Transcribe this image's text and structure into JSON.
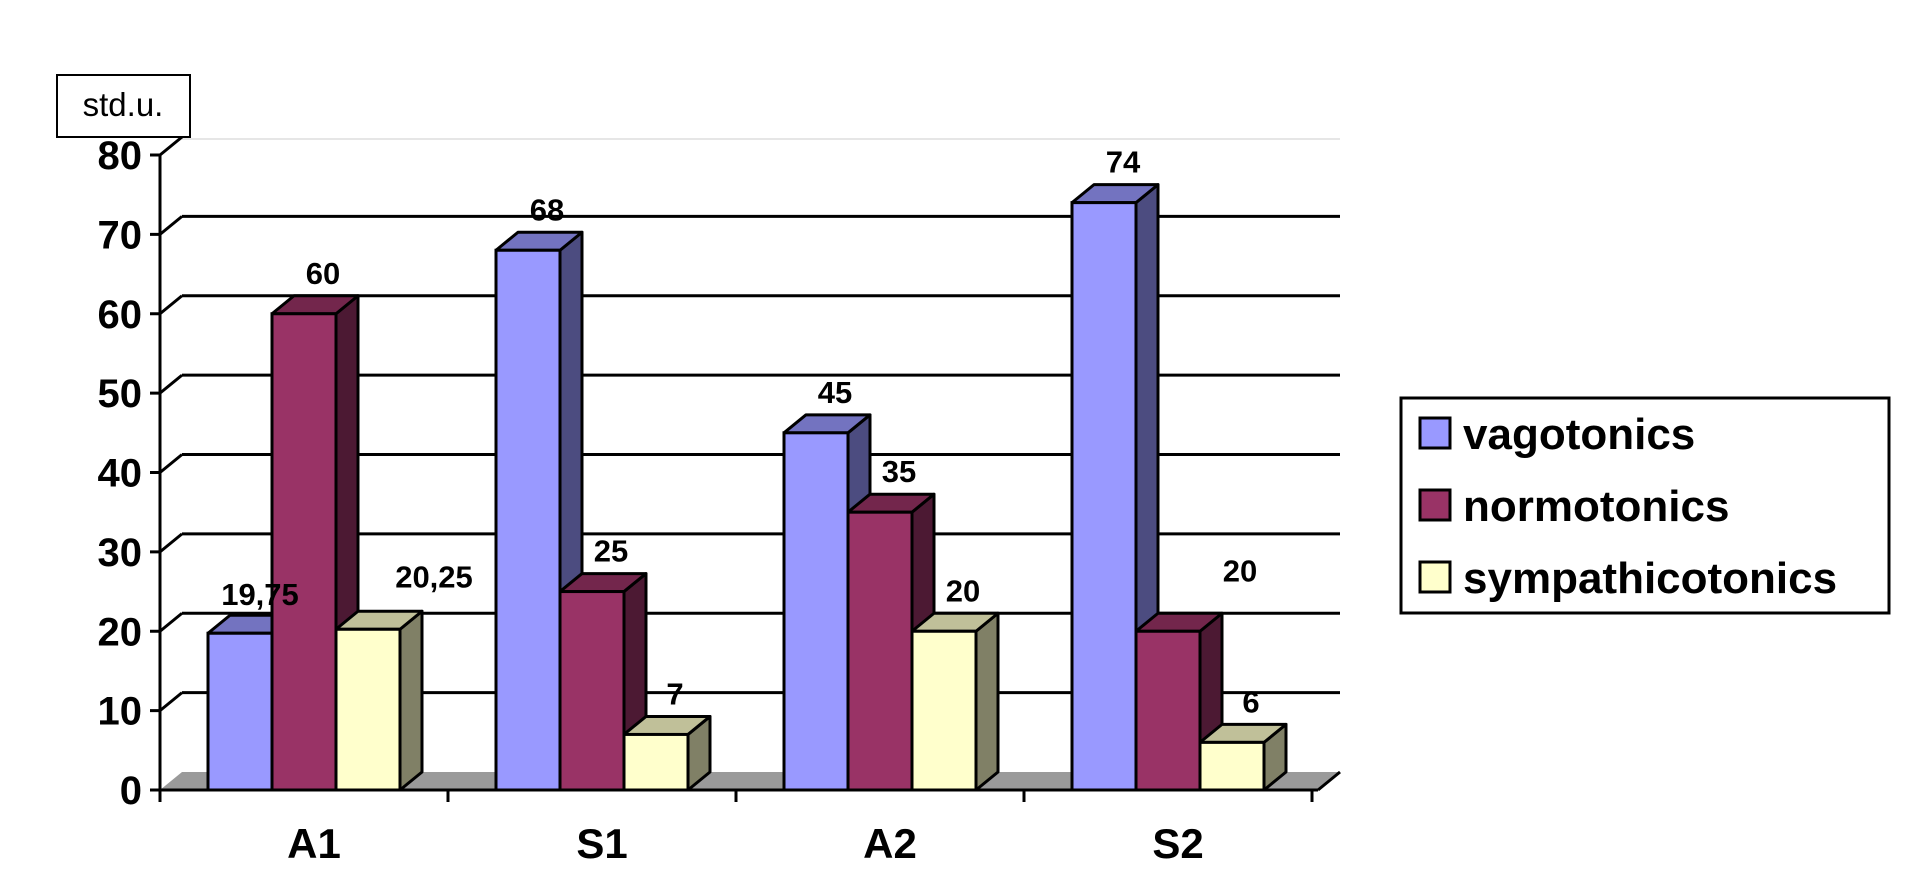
{
  "chart_data": {
    "type": "bar",
    "unit_label": "std.u.",
    "categories": [
      "A1",
      "S1",
      "A2",
      "S2"
    ],
    "series": [
      {
        "name": "vagotonics",
        "values": [
          19.75,
          68,
          45,
          74
        ],
        "labels": [
          "19,75",
          "68",
          "45",
          "74"
        ],
        "color": "#9999ff",
        "side_color": "#4c4c80",
        "top_color": "#7373c0"
      },
      {
        "name": "normotonics",
        "values": [
          60,
          25,
          35,
          20
        ],
        "labels": [
          "60",
          "25",
          "35",
          "20"
        ],
        "color": "#993366",
        "side_color": "#4c1933",
        "top_color": "#73264c"
      },
      {
        "name": "sympathicotonics",
        "values": [
          20.25,
          7,
          20,
          6
        ],
        "labels": [
          "20,25",
          "7",
          "20",
          "6"
        ],
        "color": "#ffffcc",
        "side_color": "#808066",
        "top_color": "#c0c099"
      }
    ],
    "y_ticks": [
      "0",
      "10",
      "20",
      "30",
      "40",
      "50",
      "60",
      "70",
      "80"
    ],
    "ylim": [
      0,
      80
    ],
    "grid": true,
    "legend_position": "right"
  }
}
